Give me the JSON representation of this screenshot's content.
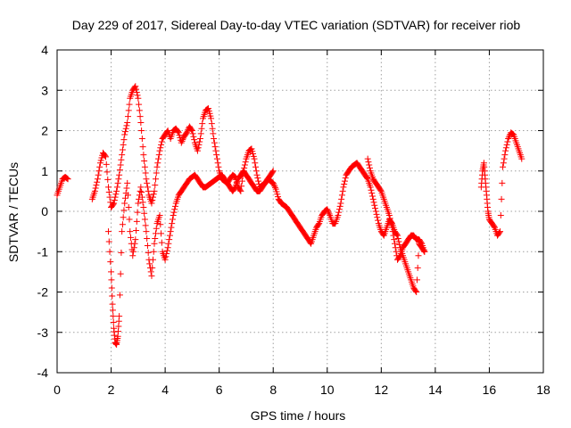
{
  "chart_data": {
    "type": "scatter",
    "title": "Day 229 of 2017, Sidereal Day-to-day VTEC variation (SDTVAR) for receiver riob",
    "xlabel": "GPS time / hours",
    "ylabel": "SDTVAR / TECUs",
    "xlim": [
      0,
      18
    ],
    "ylim": [
      -4,
      4
    ],
    "xticks": [
      0,
      2,
      4,
      6,
      8,
      10,
      12,
      14,
      16,
      18
    ],
    "xtick_labels": [
      "0",
      "2",
      "4",
      "6",
      "8",
      "10",
      "12",
      "14",
      "16",
      "18"
    ],
    "yticks": [
      -4,
      -3,
      -2,
      -1,
      0,
      1,
      2,
      3,
      4
    ],
    "ytick_labels": [
      "-4",
      "-3",
      "-2",
      "-1",
      "0",
      "1",
      "2",
      "3",
      "4"
    ],
    "grid": true,
    "marker": "+",
    "color": "#ff0000",
    "series": [
      {
        "name": "main",
        "x": [
          0.0,
          0.1,
          0.2,
          0.3,
          0.4,
          1.3,
          1.4,
          1.5,
          1.6,
          1.7,
          1.8,
          1.9,
          2.0,
          2.1,
          2.2,
          2.3,
          2.4,
          2.5,
          2.6,
          2.7,
          2.8,
          2.9,
          3.0,
          3.1,
          3.2,
          3.3,
          3.4,
          3.5,
          3.6,
          3.7,
          3.8,
          3.9,
          4.0,
          4.1,
          4.2,
          4.3,
          4.4,
          4.5,
          4.6,
          4.7,
          4.8,
          4.9,
          5.0,
          5.1,
          5.2,
          5.3,
          5.4,
          5.5,
          5.6,
          5.7,
          5.8,
          5.9,
          6.0,
          6.1,
          6.2,
          6.3,
          6.4,
          6.5,
          6.6,
          6.7,
          6.8,
          6.9,
          7.0,
          7.1,
          7.2,
          7.3,
          7.4,
          7.5,
          7.6,
          7.7,
          7.8,
          7.9,
          8.0,
          8.1,
          8.2,
          8.3,
          8.4,
          8.5,
          8.6,
          8.7,
          8.8,
          8.9,
          9.0,
          9.1,
          9.2,
          9.3,
          9.4,
          9.5,
          9.6,
          9.7,
          9.8,
          9.9,
          10.0,
          10.1,
          10.2,
          10.3,
          10.4,
          10.5,
          10.6,
          10.7,
          10.8,
          10.9,
          11.0,
          11.1,
          11.2,
          11.3,
          11.4,
          11.5,
          11.6,
          11.7,
          11.8,
          11.9,
          12.0,
          12.1,
          12.2,
          12.3,
          12.4,
          12.5,
          12.6,
          12.7,
          12.8,
          12.9,
          13.0,
          13.1,
          13.2,
          13.3,
          13.4,
          13.5,
          13.6
        ],
        "y": [
          0.4,
          0.6,
          0.8,
          0.85,
          0.8,
          0.3,
          0.5,
          0.8,
          1.2,
          1.45,
          1.35,
          0.6,
          0.1,
          0.2,
          0.5,
          0.9,
          1.4,
          1.9,
          2.2,
          2.8,
          3.0,
          3.1,
          2.8,
          2.2,
          1.4,
          0.8,
          0.4,
          0.2,
          0.5,
          1.1,
          1.5,
          1.8,
          1.9,
          2.0,
          1.8,
          2.0,
          2.05,
          1.95,
          1.7,
          1.85,
          1.95,
          2.1,
          2.0,
          1.7,
          1.5,
          1.8,
          2.3,
          2.5,
          2.55,
          2.3,
          1.8,
          1.4,
          1.0,
          0.8,
          0.75,
          0.7,
          0.8,
          0.9,
          0.85,
          0.6,
          0.5,
          1.0,
          1.3,
          1.5,
          1.55,
          1.3,
          0.9,
          0.6,
          0.65,
          0.7,
          0.8,
          0.75,
          0.7,
          0.55,
          0.3,
          0.2,
          0.15,
          0.1,
          0.0,
          -0.1,
          -0.2,
          -0.3,
          -0.4,
          -0.5,
          -0.6,
          -0.7,
          -0.8,
          -0.6,
          -0.4,
          -0.3,
          -0.1,
          0.0,
          0.05,
          -0.1,
          -0.3,
          -0.3,
          -0.1,
          0.2,
          0.6,
          0.9,
          1.0,
          1.1,
          1.15,
          1.2,
          1.1,
          1.0,
          0.9,
          0.8,
          0.6,
          0.3,
          0.0,
          -0.3,
          -0.5,
          -0.6,
          -0.4,
          -0.2,
          -0.3,
          -0.5,
          -0.6,
          -0.9,
          -1.1,
          -1.3,
          -1.5,
          -1.7,
          -1.9,
          -2.0,
          -0.8,
          -0.9,
          -1.0
        ]
      },
      {
        "name": "secondary",
        "x": [
          1.9,
          2.0,
          2.05,
          2.1,
          2.15,
          2.2,
          2.25,
          2.3,
          2.4,
          2.5,
          2.6,
          2.7,
          2.8,
          2.9,
          3.0,
          3.1,
          3.2,
          3.3,
          3.4,
          3.5,
          3.6,
          3.7,
          3.8,
          3.9,
          4.0,
          4.1,
          4.2,
          4.3,
          4.4,
          4.5,
          4.6,
          4.7,
          4.8,
          4.9,
          5.0,
          5.1,
          5.2,
          5.3,
          5.4,
          5.5,
          5.6,
          5.7,
          5.8,
          5.9,
          6.0,
          6.1,
          6.2,
          6.3,
          6.4,
          6.5,
          6.6,
          6.7,
          6.8,
          6.9,
          7.0,
          7.1,
          7.2,
          7.3,
          7.4,
          7.5,
          7.6,
          7.7,
          7.8,
          7.9,
          8.0,
          11.5,
          11.6,
          11.7,
          11.8,
          11.9,
          12.0,
          12.1,
          12.2,
          12.3,
          12.4,
          12.5,
          12.6,
          12.7,
          12.8,
          12.9,
          13.0,
          13.1,
          13.2,
          13.3,
          13.4,
          13.5,
          13.6
        ],
        "y": [
          -0.5,
          -1.5,
          -2.3,
          -2.9,
          -3.25,
          -3.3,
          -3.1,
          -2.6,
          -0.5,
          0.2,
          0.7,
          -0.5,
          -1.1,
          -0.7,
          0.2,
          0.6,
          0.1,
          -0.5,
          -1.2,
          -1.6,
          -0.8,
          -0.3,
          -0.1,
          -1.0,
          -1.2,
          -0.9,
          -0.5,
          -0.1,
          0.2,
          0.4,
          0.5,
          0.6,
          0.7,
          0.8,
          0.85,
          0.9,
          0.8,
          0.7,
          0.6,
          0.6,
          0.65,
          0.7,
          0.75,
          0.8,
          0.85,
          0.9,
          0.8,
          0.7,
          0.6,
          0.5,
          0.6,
          0.8,
          0.9,
          1.0,
          0.9,
          0.8,
          0.7,
          0.6,
          0.5,
          0.5,
          0.6,
          0.7,
          0.8,
          0.9,
          1.0,
          1.3,
          1.0,
          0.8,
          0.7,
          0.6,
          0.5,
          0.3,
          0.1,
          -0.1,
          -0.4,
          -0.8,
          -1.2,
          -1.1,
          -0.9,
          -0.8,
          -0.7,
          -0.6,
          -0.6,
          -0.7,
          -0.7,
          -0.8,
          -1.0
        ]
      },
      {
        "name": "late",
        "x": [
          15.7,
          15.75,
          15.8,
          15.85,
          15.9,
          15.95,
          16.0,
          16.1,
          16.2,
          16.3,
          16.4,
          16.5,
          16.6,
          16.7,
          16.8,
          16.9,
          17.0,
          17.1,
          17.2
        ],
        "y": [
          0.6,
          1.0,
          1.2,
          0.8,
          0.4,
          0.0,
          -0.2,
          -0.3,
          -0.4,
          -0.6,
          -0.5,
          1.1,
          1.5,
          1.8,
          1.95,
          1.9,
          1.7,
          1.5,
          1.3
        ]
      }
    ]
  }
}
